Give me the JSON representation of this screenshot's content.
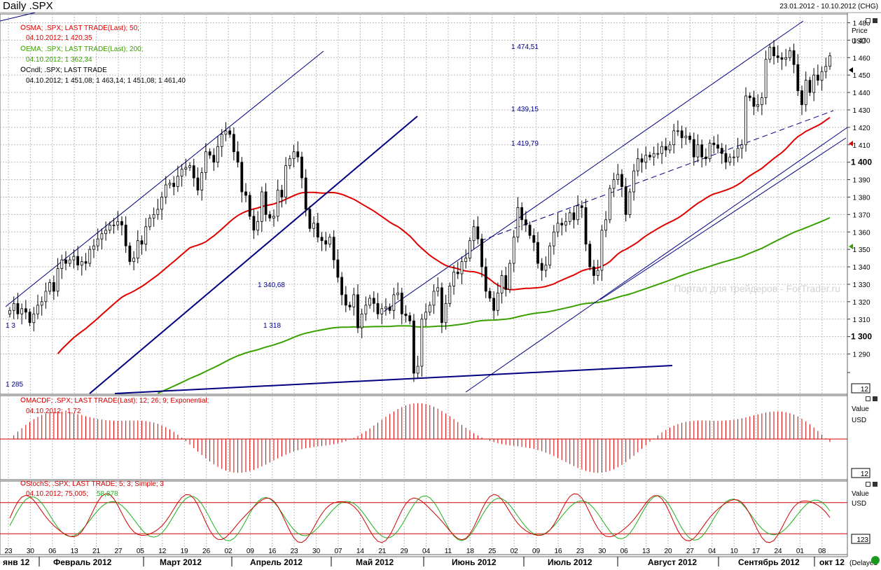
{
  "header": {
    "title": "Daily .SPX",
    "date_range": "23.01.2012 - 10.10.2012 (CHG)"
  },
  "colors": {
    "sma": "#e00000",
    "ema": "#3aa000",
    "candle": "#000000",
    "trend": "#000080",
    "macd": "#d00000",
    "stoch_k": "#d00000",
    "stoch_d": "#20b020",
    "grid": "#bcbcbc",
    "status_ok": "#1a9a1a"
  },
  "legend": {
    "sma": {
      "line1": "SMA; .SPX; LAST TRADE(Last); 50;",
      "line2": "04.10.2012; 1 420,35"
    },
    "ema": {
      "line1": "EMA; .SPX; LAST TRADE(Last); 200;",
      "line2": "04.10.2012; 1 362,34"
    },
    "cndl": {
      "line1": "Cndl; .SPX; LAST TRADE",
      "line2": "04.10.2012; 1 451,08; 1 463,14; 1 451,08; 1 461,40"
    },
    "macd": {
      "line1": "MACDF; .SPX; LAST TRADE(Last); 12; 26; 9; Exponential;",
      "line2": "04.10.2012; -1,72"
    },
    "stoch": {
      "line1": "StochS; .SPX; LAST TRADE; 5; 3; Simple; 3",
      "line2a": "04.10.2012; 75,005;",
      "line2b": "58,878"
    }
  },
  "panels": {
    "price": {
      "axis_title": "Price",
      "unit": "USD",
      "count_label": "12"
    },
    "macd": {
      "axis_title": "Value",
      "unit": "USD",
      "count_label": "12"
    },
    "stoch": {
      "axis_title": "Value",
      "unit": "USD",
      "count_label": "123"
    }
  },
  "watermark": "Портал для трейдеров - ForTrader.ru",
  "status": {
    "delayed": "(Delayed"
  },
  "chart_data": {
    "type": "candlestick",
    "title": "Daily .SPX",
    "ylabel": "Price",
    "yunit": "USD",
    "ylim": [
      1280,
      1485
    ],
    "yticks": [
      1290,
      1300,
      1310,
      1320,
      1330,
      1340,
      1350,
      1360,
      1370,
      1380,
      1390,
      1400,
      1410,
      1420,
      1430,
      1440,
      1450,
      1460,
      1470,
      1480
    ],
    "ytick_labels": [
      "1 290",
      "1 300",
      "1 310",
      "1 320",
      "1 330",
      "1 340",
      "1 350",
      "1 360",
      "1 370",
      "1 380",
      "1 390",
      "1 400",
      "1 410",
      "1 420",
      "1 430",
      "1 440",
      "1 450",
      "1 460",
      "1 470",
      "1 480"
    ],
    "ytick_bold": [
      1300,
      1400
    ],
    "grid": true,
    "x_day_labels": [
      "23",
      "30",
      "06",
      "13",
      "21",
      "27",
      "05",
      "12",
      "19",
      "26",
      "02",
      "09",
      "16",
      "23",
      "30",
      "07",
      "14",
      "21",
      "29",
      "04",
      "11",
      "18",
      "25",
      "02",
      "09",
      "16",
      "23",
      "30",
      "06",
      "13",
      "20",
      "27",
      "04",
      "10",
      "17",
      "24",
      "01",
      "08"
    ],
    "x_month_labels": [
      "янв 12",
      "Февраль 2012",
      "Март 2012",
      "Апрель 2012",
      "Май 2012",
      "Июнь 2012",
      "Июль 2012",
      "Август 2012",
      "Сентябрь 2012",
      "окт 12"
    ],
    "price_annotations": [
      "1 474,51",
      "1 439,15",
      "1 419,79",
      "1 340,68",
      "1 318",
      "1 285",
      "1 3"
    ],
    "last_close": 1461.4,
    "close": [
      1315,
      1319,
      1313,
      1316,
      1314,
      1308,
      1313,
      1318,
      1320,
      1326,
      1331,
      1326,
      1339,
      1344,
      1342,
      1344,
      1346,
      1341,
      1343,
      1342,
      1350,
      1352,
      1356,
      1359,
      1361,
      1364,
      1364,
      1366,
      1364,
      1352,
      1343,
      1345,
      1355,
      1353,
      1363,
      1368,
      1370,
      1373,
      1380,
      1387,
      1388,
      1386,
      1392,
      1396,
      1397,
      1398,
      1391,
      1384,
      1394,
      1406,
      1404,
      1400,
      1409,
      1416,
      1418,
      1416,
      1406,
      1400,
      1383,
      1381,
      1369,
      1361,
      1366,
      1383,
      1370,
      1368,
      1369,
      1384,
      1380,
      1398,
      1402,
      1406,
      1403,
      1391,
      1373,
      1362,
      1365,
      1357,
      1355,
      1353,
      1357,
      1344,
      1334,
      1324,
      1318,
      1317,
      1324,
      1305,
      1313,
      1318,
      1322,
      1319,
      1313,
      1316,
      1317,
      1315,
      1324,
      1325,
      1313,
      1312,
      1309,
      1279,
      1283,
      1310,
      1314,
      1318,
      1326,
      1328,
      1308,
      1319,
      1329,
      1337,
      1336,
      1343,
      1345,
      1355,
      1363,
      1356,
      1340,
      1326,
      1322,
      1315,
      1325,
      1335,
      1327,
      1342,
      1357,
      1374,
      1367,
      1364,
      1358,
      1354,
      1342,
      1338,
      1341,
      1352,
      1360,
      1365,
      1364,
      1366,
      1371,
      1367,
      1375,
      1374,
      1353,
      1340,
      1335,
      1338,
      1361,
      1367,
      1385,
      1390,
      1393,
      1386,
      1370,
      1383,
      1395,
      1402,
      1400,
      1404,
      1403,
      1405,
      1405,
      1409,
      1407,
      1410,
      1418,
      1418,
      1414,
      1415,
      1413,
      1403,
      1410,
      1403,
      1402,
      1411,
      1410,
      1408,
      1405,
      1400,
      1403,
      1403,
      1408,
      1410,
      1438,
      1437,
      1432,
      1433,
      1437,
      1459,
      1466,
      1461,
      1460,
      1459,
      1460,
      1464,
      1456,
      1441,
      1433,
      1447,
      1440,
      1450,
      1447,
      1452,
      1455,
      1461
    ]
  }
}
